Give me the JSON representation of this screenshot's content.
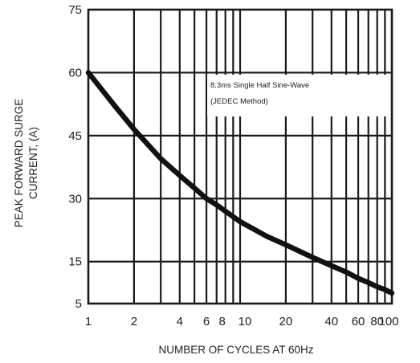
{
  "chart_data": {
    "type": "line",
    "title": "",
    "xlabel": "NUMBER OF CYCLES AT 60Hz",
    "ylabel_lines": [
      "PEAK FORWARD SURGE",
      "CURRENT, (A)"
    ],
    "x_scale": "log",
    "xlim": [
      1,
      100
    ],
    "ylim": [
      5,
      75
    ],
    "x_ticks": [
      1,
      2,
      4,
      6,
      8,
      10,
      20,
      40,
      60,
      80,
      100
    ],
    "x_tick_labels": [
      "1",
      "2",
      "4",
      "6",
      "8",
      "10",
      "20",
      "40",
      "60",
      "80",
      "100"
    ],
    "y_ticks": [
      5,
      15,
      30,
      45,
      60,
      75
    ],
    "y_tick_labels": [
      "5",
      "15",
      "30",
      "45",
      "60",
      "75"
    ],
    "x_minor_gridlines": [
      3,
      5,
      7,
      9,
      30,
      50,
      70,
      90
    ],
    "y_gridlines": [
      15,
      30,
      45,
      60
    ],
    "grid": true,
    "annotation_lines": [
      "8.3ms Single Half Sine-Wave",
      "(JEDEC Method)"
    ],
    "series": [
      {
        "x": [
          1,
          1.5,
          2,
          3,
          4,
          5,
          6,
          7,
          8,
          10,
          15,
          20,
          30,
          40,
          50,
          60,
          70,
          80,
          90,
          100
        ],
        "y": [
          60,
          52,
          46.5,
          39.5,
          35.5,
          32.5,
          30,
          28.5,
          27,
          24.5,
          21,
          19,
          16,
          14,
          12.5,
          11,
          10,
          9,
          8.3,
          7.5
        ]
      }
    ],
    "colors": {
      "line": "#111111",
      "grid": "#1a1a1a",
      "annotation_bg": "#ffffff"
    }
  }
}
